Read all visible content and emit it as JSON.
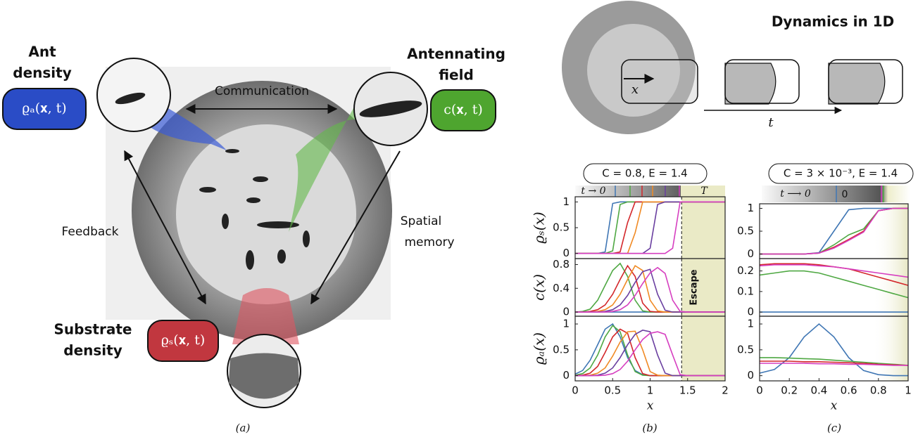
{
  "figure": {
    "ant_title": [
      "Ant",
      "density"
    ],
    "ant_label": "ϱₐ(𝐱, t)",
    "field_title": [
      "Antennating",
      "field"
    ],
    "field_label": "c(𝐱, t)",
    "substrate_title": [
      "Substrate",
      "density"
    ],
    "substrate_label": "ϱₛ(𝐱, t)",
    "communication": "Communication",
    "feedback": "Feedback",
    "memory": [
      "Spatial",
      "memory"
    ],
    "panel_a": "(a)",
    "panel_b": "(b)",
    "panel_c": "(c)",
    "dynamics_title": "Dynamics in 1D",
    "photo_x": "x",
    "photo_t": "t",
    "b_condition": "C = 0.8, E = 1.4",
    "c_condition": "C = 3 × 10⁻³, E = 1.4",
    "b_colorbar_start": "t → 0",
    "b_colorbar_end": "T",
    "c_colorbar_start": "t ⟶ 0",
    "c_colorbar_zero": "0"
  },
  "chart_data": [
    {
      "type": "line",
      "ylabel": "ϱₛ(x)",
      "xlim": [
        0,
        2
      ],
      "ylim": [
        -0.1,
        1.1
      ],
      "yticks": [
        0,
        0.5,
        1
      ],
      "x": [
        0,
        0.1,
        0.2,
        0.3,
        0.4,
        0.5,
        0.6,
        0.7,
        0.8,
        0.9,
        1,
        1.1,
        1.2,
        1.3,
        1.4,
        1.5,
        1.6,
        1.7,
        1.8,
        1.9,
        2
      ],
      "series": [
        {
          "color": "#3f76b4",
          "values": [
            0,
            0,
            0,
            0,
            0.03,
            0.97,
            1,
            1,
            1,
            1,
            1,
            1,
            1,
            1,
            1,
            1,
            1,
            1,
            1,
            1,
            1
          ]
        },
        {
          "color": "#4fa843",
          "values": [
            0,
            0,
            0,
            0,
            0,
            0.05,
            0.95,
            1,
            1,
            1,
            1,
            1,
            1,
            1,
            1,
            1,
            1,
            1,
            1,
            1,
            1
          ]
        },
        {
          "color": "#d3272b",
          "values": [
            0,
            0,
            0,
            0,
            0,
            0,
            0.03,
            0.6,
            1,
            1,
            1,
            1,
            1,
            1,
            1,
            1,
            1,
            1,
            1,
            1,
            1
          ]
        },
        {
          "color": "#f08a24",
          "values": [
            0,
            0,
            0,
            0,
            0,
            0,
            0,
            0,
            0.4,
            1,
            1,
            1,
            1,
            1,
            1,
            1,
            1,
            1,
            1,
            1,
            1
          ]
        },
        {
          "color": "#6a3fa0",
          "values": [
            0,
            0,
            0,
            0,
            0,
            0,
            0,
            0,
            0,
            0,
            0.1,
            0.95,
            1,
            1,
            1,
            1,
            1,
            1,
            1,
            1,
            1
          ]
        },
        {
          "color": "#d63fc0",
          "values": [
            0,
            0,
            0,
            0,
            0,
            0,
            0,
            0,
            0,
            0,
            0,
            0,
            0,
            0.1,
            1,
            1,
            1,
            1,
            1,
            1,
            1
          ]
        }
      ]
    },
    {
      "type": "line",
      "ylabel": "c(x)",
      "xlim": [
        0,
        2
      ],
      "ylim": [
        -0.07,
        0.9
      ],
      "yticks": [
        0,
        0.4,
        0.8
      ],
      "annotations": [
        {
          "text": "Escape",
          "x": 1.42
        }
      ],
      "x": [
        0,
        0.1,
        0.2,
        0.3,
        0.4,
        0.5,
        0.6,
        0.7,
        0.8,
        0.9,
        1,
        1.1,
        1.2,
        1.3,
        1.4,
        1.5,
        1.6,
        1.7,
        1.8,
        1.9,
        2
      ],
      "series": [
        {
          "color": "#3f76b4",
          "values": [
            0,
            0,
            0,
            0,
            0,
            0,
            0,
            0,
            0,
            0,
            0,
            0,
            0,
            0,
            0,
            0,
            0,
            0,
            0,
            0,
            0
          ]
        },
        {
          "color": "#4fa843",
          "values": [
            0,
            0.01,
            0.05,
            0.2,
            0.45,
            0.7,
            0.82,
            0.6,
            0.2,
            0.02,
            0,
            0,
            0,
            0,
            0,
            0,
            0,
            0,
            0,
            0,
            0
          ]
        },
        {
          "color": "#d3272b",
          "values": [
            0,
            0,
            0.01,
            0.04,
            0.12,
            0.3,
            0.55,
            0.78,
            0.6,
            0.15,
            0.01,
            0,
            0,
            0,
            0,
            0,
            0,
            0,
            0,
            0,
            0
          ]
        },
        {
          "color": "#f08a24",
          "values": [
            0,
            0,
            0,
            0.01,
            0.04,
            0.12,
            0.3,
            0.55,
            0.78,
            0.7,
            0.2,
            0.02,
            0,
            0,
            0,
            0,
            0,
            0,
            0,
            0,
            0
          ]
        },
        {
          "color": "#6a3fa0",
          "values": [
            0,
            0,
            0,
            0,
            0.01,
            0.04,
            0.12,
            0.28,
            0.5,
            0.68,
            0.72,
            0.3,
            0.03,
            0,
            0,
            0,
            0,
            0,
            0,
            0,
            0
          ]
        },
        {
          "color": "#d63fc0",
          "values": [
            0,
            0,
            0,
            0,
            0,
            0.01,
            0.04,
            0.12,
            0.28,
            0.48,
            0.66,
            0.75,
            0.65,
            0.2,
            0.01,
            0,
            0,
            0,
            0,
            0,
            0
          ]
        }
      ]
    },
    {
      "type": "line",
      "ylabel": "ϱₐ(x)",
      "xlabel": "x",
      "xlim": [
        0,
        2
      ],
      "xticks": [
        0,
        0.5,
        1,
        1.5,
        2
      ],
      "ylim": [
        -0.1,
        1.15
      ],
      "yticks": [
        0,
        0.5,
        1
      ],
      "x": [
        0,
        0.1,
        0.2,
        0.3,
        0.4,
        0.5,
        0.6,
        0.7,
        0.8,
        0.9,
        1,
        1.1,
        1.2,
        1.3,
        1.4,
        1.5,
        1.6,
        1.7,
        1.8,
        1.9,
        2
      ],
      "series": [
        {
          "color": "#3f76b4",
          "values": [
            0.03,
            0.1,
            0.3,
            0.6,
            0.9,
            1,
            0.75,
            0.35,
            0.1,
            0.02,
            0,
            0,
            0,
            0,
            0,
            0,
            0,
            0,
            0,
            0,
            0
          ]
        },
        {
          "color": "#4fa843",
          "values": [
            0.01,
            0.04,
            0.15,
            0.4,
            0.75,
            0.97,
            0.85,
            0.4,
            0.08,
            0.01,
            0,
            0,
            0,
            0,
            0,
            0,
            0,
            0,
            0,
            0,
            0
          ]
        },
        {
          "color": "#d3272b",
          "values": [
            0,
            0.01,
            0.05,
            0.18,
            0.45,
            0.75,
            0.9,
            0.82,
            0.35,
            0.04,
            0,
            0,
            0,
            0,
            0,
            0,
            0,
            0,
            0,
            0,
            0
          ]
        },
        {
          "color": "#f08a24",
          "values": [
            0,
            0,
            0.01,
            0.05,
            0.15,
            0.38,
            0.65,
            0.85,
            0.86,
            0.5,
            0.08,
            0.01,
            0,
            0,
            0,
            0,
            0,
            0,
            0,
            0,
            0
          ]
        },
        {
          "color": "#6a3fa0",
          "values": [
            0,
            0,
            0,
            0.01,
            0.05,
            0.15,
            0.35,
            0.6,
            0.8,
            0.88,
            0.85,
            0.4,
            0.05,
            0,
            0,
            0,
            0,
            0,
            0,
            0,
            0
          ]
        },
        {
          "color": "#d63fc0",
          "values": [
            0,
            0,
            0,
            0,
            0.01,
            0.04,
            0.12,
            0.28,
            0.5,
            0.7,
            0.82,
            0.85,
            0.8,
            0.4,
            0.02,
            0,
            0,
            0,
            0,
            0,
            0
          ]
        }
      ]
    },
    {
      "type": "line",
      "xlim": [
        0,
        1
      ],
      "ylim": [
        -0.1,
        1.1
      ],
      "yticks": [
        0,
        0.5,
        1
      ],
      "x": [
        0,
        0.1,
        0.2,
        0.3,
        0.4,
        0.5,
        0.6,
        0.7,
        0.8,
        0.9,
        1
      ],
      "series": [
        {
          "color": "#3f76b4",
          "values": [
            0,
            0,
            0,
            0,
            0.03,
            0.5,
            0.97,
            1,
            1,
            1,
            1
          ]
        },
        {
          "color": "#4fa843",
          "values": [
            0,
            0,
            0,
            0,
            0.02,
            0.2,
            0.42,
            0.55,
            0.95,
            1,
            1
          ]
        },
        {
          "color": "#d3272b",
          "values": [
            0,
            0,
            0,
            0,
            0.02,
            0.15,
            0.32,
            0.5,
            0.95,
            1,
            1
          ]
        },
        {
          "color": "#d63fc0",
          "values": [
            0,
            0,
            0,
            0,
            0.02,
            0.13,
            0.3,
            0.48,
            0.95,
            1,
            1
          ]
        }
      ]
    },
    {
      "type": "line",
      "xlim": [
        0,
        1
      ],
      "ylim": [
        -0.02,
        0.26
      ],
      "yticks": [
        0,
        0.1,
        0.2
      ],
      "x": [
        0,
        0.1,
        0.2,
        0.3,
        0.4,
        0.5,
        0.6,
        0.7,
        0.8,
        0.9,
        1
      ],
      "series": [
        {
          "color": "#3f76b4",
          "values": [
            0,
            0,
            0,
            0,
            0,
            0,
            0,
            0,
            0,
            0,
            0
          ]
        },
        {
          "color": "#4fa843",
          "values": [
            0.18,
            0.19,
            0.2,
            0.2,
            0.19,
            0.17,
            0.15,
            0.13,
            0.11,
            0.09,
            0.07
          ]
        },
        {
          "color": "#d3272b",
          "values": [
            0.23,
            0.235,
            0.235,
            0.235,
            0.23,
            0.22,
            0.21,
            0.19,
            0.17,
            0.15,
            0.13
          ]
        },
        {
          "color": "#d63fc0",
          "values": [
            0.225,
            0.23,
            0.23,
            0.23,
            0.225,
            0.22,
            0.21,
            0.2,
            0.19,
            0.18,
            0.17
          ]
        }
      ]
    },
    {
      "type": "line",
      "xlabel": "x",
      "xlim": [
        0,
        1
      ],
      "xticks": [
        0,
        0.2,
        0.4,
        0.6,
        0.8,
        1
      ],
      "ylim": [
        -0.1,
        1.15
      ],
      "yticks": [
        0,
        0.5,
        1
      ],
      "x": [
        0,
        0.1,
        0.2,
        0.3,
        0.4,
        0.5,
        0.6,
        0.7,
        0.8,
        0.9,
        1
      ],
      "series": [
        {
          "color": "#3f76b4",
          "values": [
            0.05,
            0.12,
            0.35,
            0.75,
            1,
            0.75,
            0.35,
            0.1,
            0.02,
            0,
            0
          ]
        },
        {
          "color": "#4fa843",
          "values": [
            0.35,
            0.35,
            0.34,
            0.33,
            0.32,
            0.3,
            0.28,
            0.26,
            0.24,
            0.22,
            0.2
          ]
        },
        {
          "color": "#d3272b",
          "values": [
            0.28,
            0.28,
            0.28,
            0.27,
            0.27,
            0.26,
            0.25,
            0.24,
            0.22,
            0.21,
            0.2
          ]
        },
        {
          "color": "#d63fc0",
          "values": [
            0.24,
            0.24,
            0.24,
            0.24,
            0.23,
            0.23,
            0.22,
            0.22,
            0.21,
            0.2,
            0.2
          ]
        }
      ]
    }
  ]
}
